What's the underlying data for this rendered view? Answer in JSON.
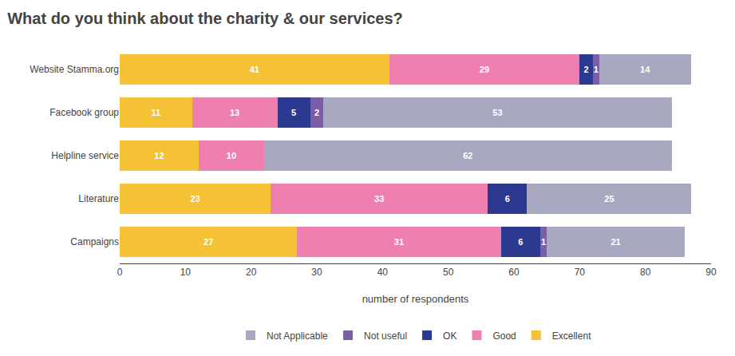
{
  "chart_data": {
    "type": "bar",
    "orientation": "horizontal",
    "stacked": true,
    "title": "What do you think about the charity & our services?",
    "categories": [
      "Campaigns",
      "Literature",
      "Helpline service",
      "Facebook group",
      "Website Stamma.org"
    ],
    "series": [
      {
        "name": "Excellent",
        "color": "#F5C135",
        "values": [
          27,
          23,
          12,
          11,
          41
        ]
      },
      {
        "name": "Good",
        "color": "#EF7FAE",
        "values": [
          31,
          33,
          10,
          13,
          29
        ]
      },
      {
        "name": "OK",
        "color": "#2B3990",
        "values": [
          6,
          6,
          0,
          5,
          2
        ]
      },
      {
        "name": "Not useful",
        "color": "#7B5EA7",
        "values": [
          1,
          0,
          0,
          2,
          1
        ]
      },
      {
        "name": "Not Applicable",
        "color": "#A8A8C0",
        "values": [
          21,
          25,
          62,
          53,
          14
        ]
      }
    ],
    "xlabel": "number of respondents",
    "xlim": [
      0,
      90
    ],
    "xticks": [
      0,
      10,
      20,
      30,
      40,
      50,
      60,
      70,
      80,
      90
    ],
    "grid": false,
    "legend": "bottom",
    "data_labels": true
  }
}
